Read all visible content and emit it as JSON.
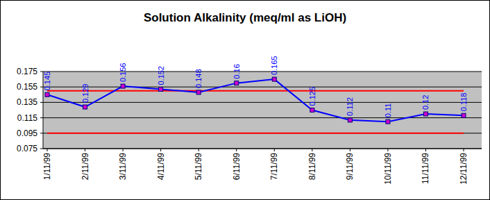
{
  "chart_data": {
    "type": "line",
    "title": "Solution Alkalinity (meq/ml as LiOH)",
    "categories": [
      "1/11/99",
      "2/11/99",
      "3/11/99",
      "4/11/99",
      "5/11/99",
      "6/11/99",
      "7/11/99",
      "8/11/99",
      "9/11/99",
      "10/11/99",
      "11/11/99",
      "12/11/99"
    ],
    "series": [
      {
        "color": "#0000ff",
        "marker": "square",
        "data_labels": true,
        "values": [
          0.145,
          0.129,
          0.156,
          0.152,
          0.148,
          0.16,
          0.165,
          0.125,
          0.112,
          0.11,
          0.12,
          0.118
        ]
      },
      {
        "color": "#ff0000",
        "marker": "none",
        "values": [
          0.15,
          0.15,
          0.15,
          0.15,
          0.15,
          0.15,
          0.15,
          0.15,
          0.15,
          0.15,
          0.15,
          0.15
        ]
      },
      {
        "color": "#ff0000",
        "marker": "none",
        "values": [
          0.095,
          0.095,
          0.095,
          0.095,
          0.095,
          0.095,
          0.095,
          0.095,
          0.095,
          0.095,
          0.095,
          0.095
        ]
      }
    ],
    "ylim": [
      0.075,
      0.175
    ],
    "yticks": [
      0.075,
      0.095,
      0.115,
      0.135,
      0.155,
      0.175
    ],
    "grid": true
  }
}
